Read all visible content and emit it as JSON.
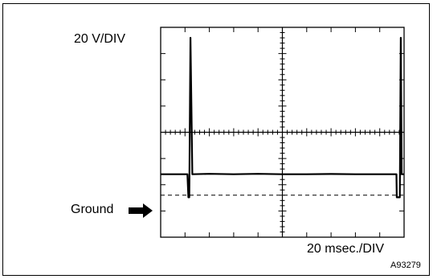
{
  "labels": {
    "volts_per_div": "20 V/DIV",
    "time_per_div": "20 msec./DIV",
    "ground": "Ground",
    "figure_code": "A93279"
  },
  "colors": {
    "trace": "#000000",
    "grid": "#000000",
    "background": "#ffffff"
  },
  "icons": {
    "ground_marker": "right-arrow-icon"
  },
  "chart_data": {
    "type": "line",
    "title": "",
    "xlabel": "20 msec./DIV",
    "ylabel": "20 V/DIV",
    "x_unit": "ms",
    "y_unit": "V",
    "xlim": [
      0,
      200
    ],
    "ylim": [
      -20,
      80
    ],
    "grid": true,
    "series": [
      {
        "x": [
          0,
          20,
          22,
          22.8,
          23.5,
          24.5,
          26,
          40,
          60,
          80,
          100,
          120,
          140,
          160,
          180,
          193.7,
          194,
          196.5,
          197.3,
          198,
          199,
          200
        ],
        "y": [
          10,
          10,
          10,
          -1,
          -1,
          75,
          10,
          10.2,
          10,
          10.2,
          10,
          10,
          10.1,
          10,
          10,
          10,
          -1,
          -1,
          75,
          10,
          10,
          10
        ]
      }
    ]
  }
}
